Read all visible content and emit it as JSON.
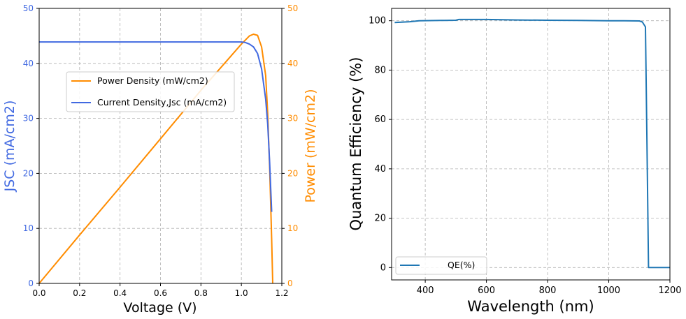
{
  "chart_data": [
    {
      "type": "line",
      "title": "",
      "xlabel": "Voltage (V)",
      "ylabel_left": "JSC (mA/cm2)",
      "ylabel_right": "Power (mW/cm2)",
      "xlim": [
        0,
        1.2
      ],
      "ylim_left": [
        0,
        50
      ],
      "ylim_right": [
        0,
        50
      ],
      "xticks": [
        "0.0",
        "0.2",
        "0.4",
        "0.6",
        "0.8",
        "1.0",
        "1.2"
      ],
      "yticks_left": [
        "0",
        "10",
        "20",
        "30",
        "40",
        "50"
      ],
      "yticks_right": [
        "0",
        "10",
        "20",
        "30",
        "40",
        "50"
      ],
      "grid": true,
      "legend_position": "upper-center",
      "colors": {
        "jsc": "#4169e1",
        "power": "#ff8c00"
      },
      "series": [
        {
          "name": "Power Density (mW/cm2)",
          "axis": "right",
          "x": [
            0.0,
            0.2,
            0.4,
            0.6,
            0.8,
            1.0,
            1.04,
            1.06,
            1.08,
            1.1,
            1.12,
            1.13,
            1.14,
            1.15,
            1.155
          ],
          "y": [
            0.0,
            8.8,
            17.5,
            26.3,
            35.1,
            43.5,
            45.0,
            45.3,
            45.1,
            43.0,
            37.8,
            31.0,
            21.0,
            8.0,
            0.0
          ]
        },
        {
          "name": "Current Density,Jsc (mA/cm2)",
          "axis": "left",
          "x": [
            0.0,
            0.2,
            0.4,
            0.6,
            0.8,
            1.0,
            1.02,
            1.04,
            1.06,
            1.08,
            1.1,
            1.12,
            1.13,
            1.14,
            1.15
          ],
          "y": [
            43.9,
            43.9,
            43.9,
            43.9,
            43.9,
            43.9,
            43.8,
            43.5,
            43.0,
            41.8,
            39.0,
            33.5,
            29.0,
            22.0,
            13.0
          ]
        }
      ]
    },
    {
      "type": "line",
      "title": "",
      "xlabel": "Wavelength (nm)",
      "ylabel": "Quantum Efficiency (%)",
      "xlim": [
        290,
        1200
      ],
      "ylim": [
        -5,
        105
      ],
      "xticks": [
        "400",
        "600",
        "800",
        "1000",
        "1200"
      ],
      "yticks": [
        "0",
        "20",
        "40",
        "60",
        "80",
        "100"
      ],
      "grid": true,
      "legend_position": "lower-left",
      "colors": {
        "qe": "#1f77b4"
      },
      "series": [
        {
          "name": "QE(%)",
          "x": [
            300,
            350,
            380,
            450,
            500,
            510,
            600,
            700,
            800,
            900,
            1000,
            1050,
            1100,
            1110,
            1115,
            1120,
            1125,
            1130,
            1200
          ],
          "y": [
            99.3,
            99.6,
            100.0,
            100.1,
            100.2,
            100.5,
            100.5,
            100.3,
            100.2,
            100.1,
            100.0,
            100.0,
            99.9,
            99.5,
            98.5,
            97.5,
            50.0,
            0.0,
            0.0
          ]
        }
      ]
    }
  ]
}
